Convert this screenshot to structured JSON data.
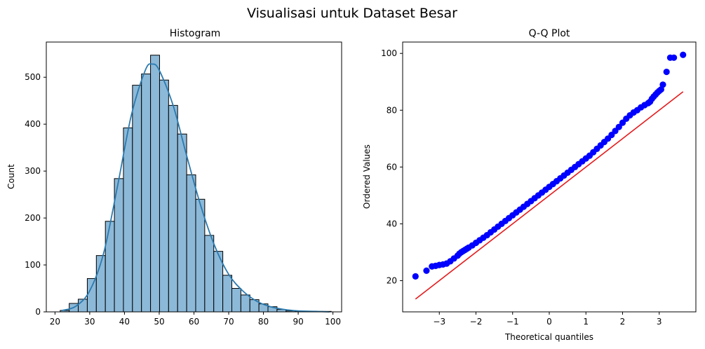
{
  "suptitle": "Visualisasi untuk Dataset Besar",
  "colors": {
    "bar_fill": "#8db9d8",
    "bar_edge": "#000000",
    "kde_line": "#2a7ab0",
    "points": "#0000ff",
    "ref_line": "#e41a1c"
  },
  "chart_data": [
    {
      "type": "bar",
      "title": "Histogram",
      "xlabel": "",
      "ylabel": "Count",
      "xlim": [
        17.5,
        102.5
      ],
      "ylim": [
        0,
        575
      ],
      "xticks": [
        20,
        30,
        40,
        50,
        60,
        70,
        80,
        90,
        100
      ],
      "yticks": [
        0,
        100,
        200,
        300,
        400,
        500
      ],
      "bin_edges": [
        21.5,
        24.1,
        26.7,
        29.3,
        31.9,
        34.5,
        37.1,
        39.7,
        42.3,
        44.9,
        47.5,
        50.1,
        52.7,
        55.3,
        57.9,
        60.5,
        63.1,
        65.7,
        68.3,
        70.9,
        73.5,
        76.1,
        78.7,
        81.3,
        83.9,
        86.5,
        89.1,
        91.7,
        94.3,
        96.9,
        99.5
      ],
      "values": [
        3,
        18,
        27,
        71,
        120,
        193,
        284,
        392,
        483,
        507,
        547,
        494,
        440,
        379,
        292,
        240,
        163,
        129,
        78,
        50,
        36,
        26,
        17,
        11,
        5,
        2,
        1,
        1,
        1,
        1
      ],
      "kde": {
        "x": [
          22,
          26,
          30,
          34,
          38,
          42,
          46,
          48,
          50,
          54,
          58,
          62,
          66,
          70,
          74,
          78,
          82,
          86,
          90,
          95,
          99
        ],
        "y": [
          3,
          12,
          45,
          125,
          268,
          420,
          515,
          528,
          515,
          440,
          330,
          225,
          140,
          80,
          45,
          23,
          11,
          5,
          2,
          1,
          0
        ]
      }
    },
    {
      "type": "scatter",
      "title": "Q-Q Plot",
      "xlabel": "Theoretical quantiles",
      "ylabel": "Ordered Values",
      "xlim": [
        -4.0,
        4.0
      ],
      "ylim": [
        9,
        104
      ],
      "xticks": [
        -3,
        -2,
        -1,
        0,
        1,
        2,
        3
      ],
      "yticks": [
        20,
        40,
        60,
        80,
        100
      ],
      "fit_line": {
        "x": [
          -3.65,
          3.65
        ],
        "y": [
          13.5,
          86.5
        ]
      },
      "points": {
        "x": [
          -3.65,
          -3.35,
          -3.2,
          -3.1,
          -3.0,
          -2.9,
          -2.8,
          -2.7,
          -2.6,
          -2.5,
          -2.45,
          -2.4,
          -2.35,
          -2.3,
          -2.25,
          -2.2,
          -2.1,
          -2.0,
          -1.9,
          -1.8,
          -1.7,
          -1.6,
          -1.5,
          -1.4,
          -1.3,
          -1.2,
          -1.1,
          -1.0,
          -0.9,
          -0.8,
          -0.7,
          -0.6,
          -0.5,
          -0.4,
          -0.3,
          -0.2,
          -0.1,
          0.0,
          0.1,
          0.2,
          0.3,
          0.4,
          0.5,
          0.6,
          0.7,
          0.8,
          0.9,
          1.0,
          1.1,
          1.2,
          1.3,
          1.4,
          1.5,
          1.6,
          1.7,
          1.8,
          1.9,
          2.0,
          2.1,
          2.2,
          2.3,
          2.4,
          2.5,
          2.6,
          2.7,
          2.75,
          2.8,
          2.85,
          2.9,
          2.95,
          3.0,
          3.05,
          3.1,
          3.2,
          3.3,
          3.4,
          3.65
        ],
        "y": [
          21.5,
          23.5,
          25.0,
          25.2,
          25.5,
          25.7,
          26.0,
          26.8,
          27.8,
          28.8,
          29.5,
          30.0,
          30.4,
          30.8,
          31.2,
          31.6,
          32.4,
          33.3,
          34.2,
          35.1,
          36.0,
          37.0,
          38.0,
          39.0,
          40.0,
          41.0,
          42.0,
          43.0,
          44.0,
          45.0,
          46.0,
          47.0,
          48.0,
          49.0,
          50.0,
          51.0,
          52.0,
          53.0,
          54.0,
          55.0,
          56.0,
          57.0,
          58.0,
          59.0,
          60.0,
          61.0,
          62.0,
          63.0,
          64.0,
          65.2,
          66.4,
          67.6,
          68.8,
          70.0,
          71.3,
          72.7,
          74.1,
          75.6,
          77.0,
          78.2,
          79.2,
          80.0,
          81.0,
          81.8,
          82.5,
          83.0,
          84.0,
          84.8,
          85.5,
          86.2,
          86.8,
          87.3,
          89.0,
          93.5,
          98.5,
          98.5,
          99.5
        ]
      }
    }
  ]
}
